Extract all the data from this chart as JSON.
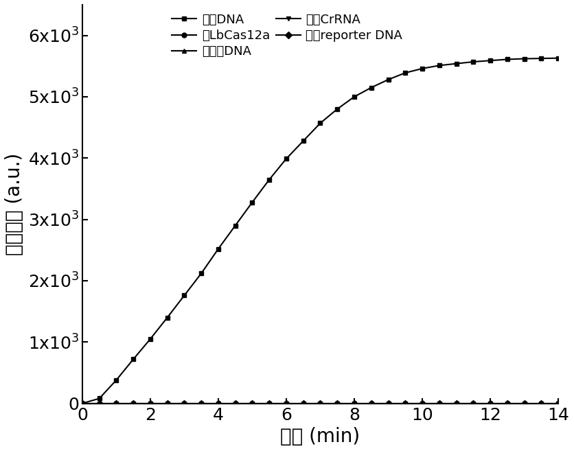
{
  "xlabel": "时间 (min)",
  "ylabel": "荧光强度 (a.u.)",
  "xlim": [
    0,
    14
  ],
  "ylim": [
    0,
    6500
  ],
  "yticks": [
    0,
    1000,
    2000,
    3000,
    4000,
    5000,
    6000
  ],
  "ytick_labels": [
    "0",
    "1x10$^3$",
    "2x10$^3$",
    "3x10$^3$",
    "4x10$^3$",
    "5x10$^3$",
    "6x10$^3$"
  ],
  "xticks": [
    0,
    2,
    4,
    6,
    8,
    10,
    12,
    14
  ],
  "legend_entries": [
    "靶标DNA",
    "无LbCas12a",
    "无靶标DNA",
    "无关CrRNA",
    "只有reporter DNA"
  ],
  "line_color": "#000000",
  "background_color": "#ffffff",
  "font_size": 20,
  "legend_font_size": 13,
  "tick_font_size": 18,
  "linewidth": 1.5,
  "markersize": 5,
  "target_x": [
    0,
    0.5,
    1.0,
    1.5,
    2.0,
    2.5,
    3.0,
    3.5,
    4.0,
    4.5,
    5.0,
    5.5,
    6.0,
    6.5,
    7.0,
    7.5,
    8.0,
    8.5,
    9.0,
    9.5,
    10.0,
    10.5,
    11.0,
    11.5,
    12.0,
    12.5,
    13.0,
    13.5,
    14.0
  ],
  "target_y": [
    0,
    80,
    380,
    720,
    1050,
    1400,
    1760,
    2120,
    2520,
    2900,
    3280,
    3650,
    3990,
    4280,
    4570,
    4800,
    5000,
    5150,
    5280,
    5390,
    5460,
    5510,
    5540,
    5570,
    5590,
    5610,
    5620,
    5625,
    5630
  ],
  "flat_x": [
    0,
    0.5,
    1.0,
    1.5,
    2.0,
    2.5,
    3.0,
    3.5,
    4.0,
    4.5,
    5.0,
    5.5,
    6.0,
    6.5,
    7.0,
    7.5,
    8.0,
    8.5,
    9.0,
    9.5,
    10.0,
    10.5,
    11.0,
    11.5,
    12.0,
    12.5,
    13.0,
    13.5,
    14.0
  ],
  "flat_y": [
    0,
    0,
    0,
    0,
    0,
    0,
    0,
    0,
    0,
    0,
    0,
    0,
    0,
    0,
    0,
    0,
    0,
    0,
    0,
    0,
    0,
    0,
    0,
    0,
    0,
    0,
    0,
    0,
    0
  ]
}
